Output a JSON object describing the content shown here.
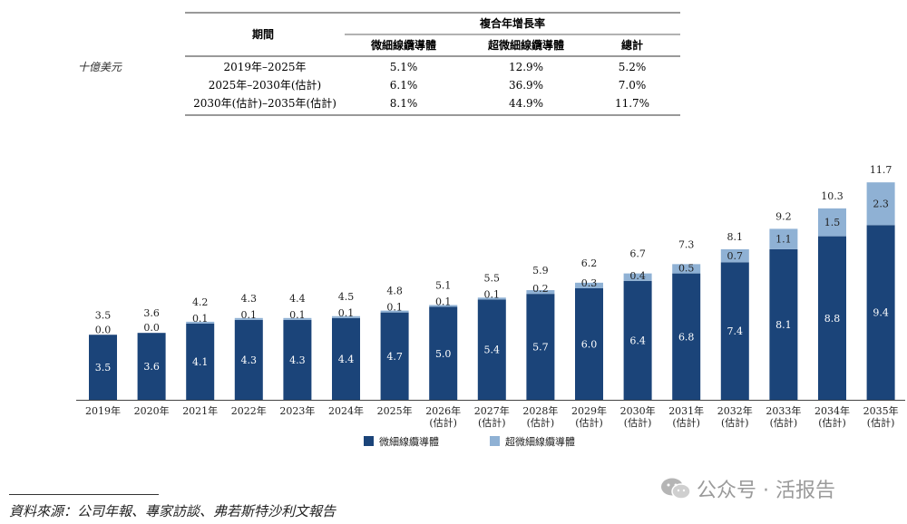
{
  "unit_label": "十億美元",
  "cagr_table": {
    "title": "複合年增長率",
    "period_header": "期間",
    "columns": [
      "微細線纜導體",
      "超微細線纜導體",
      "總計"
    ],
    "rows": [
      {
        "period": "2019年–2025年",
        "values": [
          "5.1%",
          "12.9%",
          "5.2%"
        ]
      },
      {
        "period": "2025年–2030年(估計)",
        "values": [
          "6.1%",
          "36.9%",
          "7.0%"
        ]
      },
      {
        "period": "2030年(估計)–2035年(估計)",
        "values": [
          "8.1%",
          "44.9%",
          "11.7%"
        ]
      }
    ]
  },
  "chart_data": {
    "type": "bar",
    "stacked": true,
    "categories": [
      "2019年",
      "2020年",
      "2021年",
      "2022年",
      "2023年",
      "2024年",
      "2025年",
      "2026年\n(估計)",
      "2027年\n(估計)",
      "2028年\n(估計)",
      "2029年\n(估計)",
      "2030年\n(估計)",
      "2031年\n(估計)",
      "2032年\n(估計)",
      "2033年\n(估計)",
      "2034年\n(估計)",
      "2035年\n(估計)"
    ],
    "series": [
      {
        "name": "微細線纜導體",
        "color": "#1b4479",
        "values": [
          3.5,
          3.6,
          4.1,
          4.3,
          4.3,
          4.4,
          4.7,
          5.0,
          5.4,
          5.7,
          6.0,
          6.4,
          6.8,
          7.4,
          8.1,
          8.8,
          9.4
        ]
      },
      {
        "name": "超微細線纜導體",
        "color": "#8fb1d4",
        "values": [
          0.0,
          0.0,
          0.1,
          0.1,
          0.1,
          0.1,
          0.1,
          0.1,
          0.1,
          0.2,
          0.3,
          0.4,
          0.5,
          0.7,
          1.1,
          1.5,
          2.3
        ]
      }
    ],
    "totals": [
      3.5,
      3.6,
      4.2,
      4.3,
      4.4,
      4.5,
      4.8,
      5.1,
      5.5,
      5.9,
      6.2,
      6.7,
      7.3,
      8.1,
      9.2,
      10.3,
      11.7
    ],
    "legend_position": "bottom-center",
    "grid": false
  },
  "source": "資料來源：公司年報、專家訪談、弗若斯特沙利文報告",
  "watermark": "公众号 · 活报告"
}
